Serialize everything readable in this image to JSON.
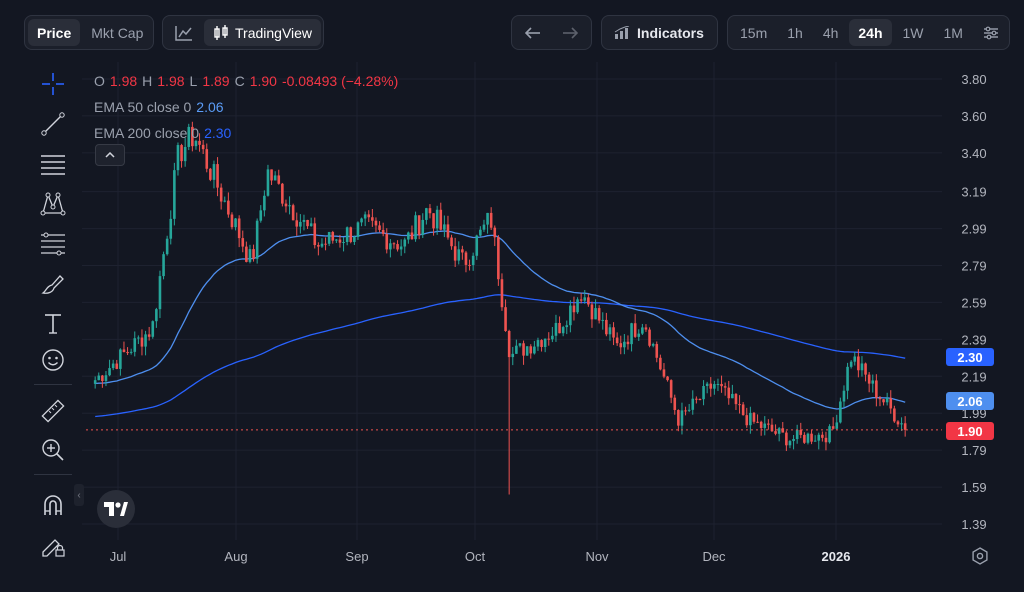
{
  "topbar": {
    "price_tab": "Price",
    "mktcap_tab": "Mkt Cap",
    "tradingview_label": "TradingView",
    "indicators_label": "Indicators",
    "intervals": [
      "15m",
      "1h",
      "4h",
      "24h",
      "1W",
      "1M"
    ],
    "active_interval": "24h"
  },
  "legend": {
    "o_label": "O",
    "o_value": "1.98",
    "h_label": "H",
    "h_value": "1.98",
    "l_label": "L",
    "l_value": "1.89",
    "c_label": "C",
    "c_value": "1.90",
    "change": "-0.08493 (−4.28%)",
    "ema50_label": "EMA 50 close 0",
    "ema50_value": "2.06",
    "ema200_label": "EMA 200 close 0",
    "ema200_value": "2.30"
  },
  "price_tags": {
    "ema200": "2.30",
    "ema50": "2.06",
    "last": "1.90"
  },
  "colors": {
    "up": "#26a69a",
    "down": "#ef5350",
    "ema50": "#4e8fef",
    "ema200": "#2962ff",
    "background": "#131722",
    "grid": "#1e2230"
  },
  "icons": [
    "crosshair-icon",
    "trend-line-icon",
    "parallel-lines-icon",
    "pattern-icon",
    "fib-icon",
    "brush-icon",
    "text-icon",
    "emoji-icon",
    "ruler-icon",
    "zoom-in-icon",
    "magnet-icon",
    "lock-drawing-icon",
    "chart-type-icon",
    "candles-icon",
    "undo-icon",
    "redo-icon",
    "indicators-icon",
    "filter-icon",
    "settings-icon",
    "tradingview-logo-icon"
  ],
  "chart_data": {
    "type": "candlestick",
    "y_axis_ticks": [
      "3.80",
      "3.60",
      "3.40",
      "3.19",
      "2.99",
      "2.79",
      "2.59",
      "2.39",
      "2.19",
      "1.99",
      "1.79",
      "1.59",
      "1.39"
    ],
    "x_axis_ticks": [
      "Jul",
      "Aug",
      "Sep",
      "Oct",
      "Nov",
      "Dec",
      "2026"
    ],
    "last_price": 1.9,
    "series": [
      {
        "name": "EMA 50 close 0",
        "last": 2.06
      },
      {
        "name": "EMA 200 close 0",
        "last": 2.3
      }
    ],
    "ohlc_anchors": [
      {
        "date": "Jun 25",
        "close": 2.17
      },
      {
        "date": "Jul 10",
        "close": 2.45
      },
      {
        "date": "Jul 17",
        "close": 3.4
      },
      {
        "date": "Jul 21",
        "close": 3.5
      },
      {
        "date": "Aug 1",
        "close": 3.0
      },
      {
        "date": "Aug 5",
        "close": 2.8
      },
      {
        "date": "Aug 9",
        "close": 3.3
      },
      {
        "date": "Aug 22",
        "close": 2.9
      },
      {
        "date": "Sep 3",
        "close": 3.0
      },
      {
        "date": "Sep 13",
        "close": 2.9
      },
      {
        "date": "Sep 19",
        "close": 3.1
      },
      {
        "date": "Sep 28",
        "close": 2.8
      },
      {
        "date": "Oct 5",
        "close": 3.05
      },
      {
        "date": "Oct 10",
        "close": 2.3
      },
      {
        "date": "Oct 22",
        "close": 2.45
      },
      {
        "date": "Oct 28",
        "close": 2.65
      },
      {
        "date": "Nov 6",
        "close": 2.35
      },
      {
        "date": "Nov 13",
        "close": 2.5
      },
      {
        "date": "Nov 22",
        "close": 1.95
      },
      {
        "date": "Dec 1",
        "close": 2.15
      },
      {
        "date": "Dec 10",
        "close": 1.95
      },
      {
        "date": "Dec 20",
        "close": 1.85
      },
      {
        "date": "Dec 31",
        "close": 1.88
      },
      {
        "date": "Jan 5",
        "close": 2.3
      },
      {
        "date": "Jan 12",
        "close": 2.1
      },
      {
        "date": "Jan 20",
        "close": 1.9
      }
    ],
    "flash_low": {
      "date": "Oct 10",
      "low": 1.55
    }
  }
}
